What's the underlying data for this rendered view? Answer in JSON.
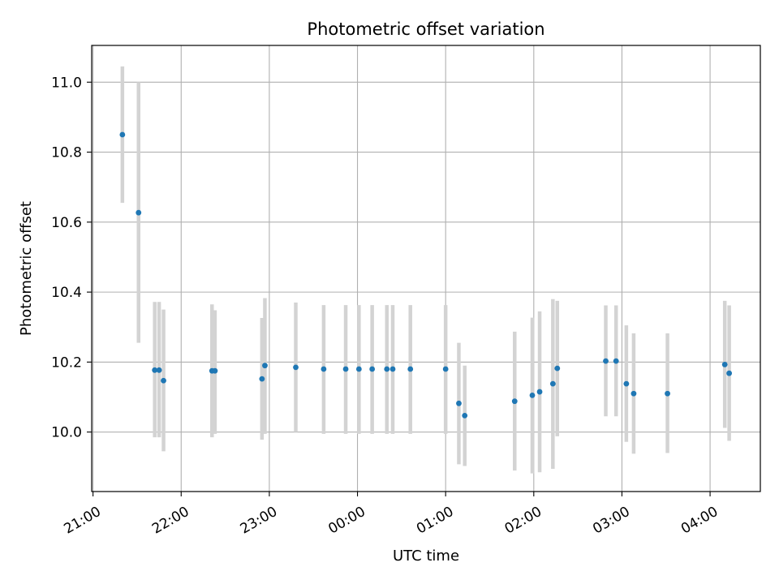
{
  "chart_data": {
    "type": "scatter",
    "title": "Photometric offset variation",
    "xlabel": "UTC time",
    "ylabel": "Photometric offset",
    "x_range_hours": [
      20.985,
      28.57
    ],
    "ylim": [
      9.83,
      11.105
    ],
    "grid": true,
    "x_ticks": [
      {
        "label": "21:00",
        "hours": 21
      },
      {
        "label": "22:00",
        "hours": 22
      },
      {
        "label": "23:00",
        "hours": 23
      },
      {
        "label": "00:00",
        "hours": 24
      },
      {
        "label": "01:00",
        "hours": 25
      },
      {
        "label": "02:00",
        "hours": 26
      },
      {
        "label": "03:00",
        "hours": 27
      },
      {
        "label": "04:00",
        "hours": 28
      }
    ],
    "y_ticks": [
      {
        "label": "10.0",
        "value": 10.0
      },
      {
        "label": "10.2",
        "value": 10.2
      },
      {
        "label": "10.4",
        "value": 10.4
      },
      {
        "label": "10.6",
        "value": 10.6
      },
      {
        "label": "10.8",
        "value": 10.8
      },
      {
        "label": "11.0",
        "value": 11.0
      }
    ],
    "series": [
      {
        "marker_color": "#1f77b4",
        "errorbar_color": "#d3d3d3",
        "points": [
          {
            "time": "21:20",
            "y": 10.85,
            "lo": 10.655,
            "hi": 11.045
          },
          {
            "time": "21:31",
            "y": 10.627,
            "lo": 10.255,
            "hi": 11.0
          },
          {
            "time": "21:42",
            "y": 10.177,
            "lo": 9.985,
            "hi": 10.372
          },
          {
            "time": "21:45",
            "y": 10.177,
            "lo": 9.985,
            "hi": 10.372
          },
          {
            "time": "21:48",
            "y": 10.147,
            "lo": 9.945,
            "hi": 10.35
          },
          {
            "time": "22:21",
            "y": 10.175,
            "lo": 9.985,
            "hi": 10.365
          },
          {
            "time": "22:23",
            "y": 10.175,
            "lo": 9.995,
            "hi": 10.348
          },
          {
            "time": "22:55",
            "y": 10.152,
            "lo": 9.978,
            "hi": 10.326
          },
          {
            "time": "22:57",
            "y": 10.19,
            "lo": 9.995,
            "hi": 10.383
          },
          {
            "time": "23:18",
            "y": 10.185,
            "lo": 10.0,
            "hi": 10.37
          },
          {
            "time": "23:37",
            "y": 10.18,
            "lo": 9.995,
            "hi": 10.363
          },
          {
            "time": "23:52",
            "y": 10.18,
            "lo": 9.995,
            "hi": 10.363
          },
          {
            "time": "00:01",
            "y": 10.18,
            "lo": 9.995,
            "hi": 10.363
          },
          {
            "time": "00:10",
            "y": 10.18,
            "lo": 9.995,
            "hi": 10.363
          },
          {
            "time": "00:20",
            "y": 10.18,
            "lo": 9.995,
            "hi": 10.363
          },
          {
            "time": "00:24",
            "y": 10.18,
            "lo": 9.995,
            "hi": 10.363
          },
          {
            "time": "00:36",
            "y": 10.18,
            "lo": 9.995,
            "hi": 10.363
          },
          {
            "time": "01:00",
            "y": 10.18,
            "lo": 9.995,
            "hi": 10.363
          },
          {
            "time": "01:09",
            "y": 10.082,
            "lo": 9.908,
            "hi": 10.255
          },
          {
            "time": "01:13",
            "y": 10.047,
            "lo": 9.903,
            "hi": 10.19
          },
          {
            "time": "01:47",
            "y": 10.088,
            "lo": 9.89,
            "hi": 10.287
          },
          {
            "time": "01:59",
            "y": 10.105,
            "lo": 9.882,
            "hi": 10.327
          },
          {
            "time": "02:04",
            "y": 10.115,
            "lo": 9.885,
            "hi": 10.345
          },
          {
            "time": "02:13",
            "y": 10.138,
            "lo": 9.895,
            "hi": 10.38
          },
          {
            "time": "02:16",
            "y": 10.182,
            "lo": 9.988,
            "hi": 10.375
          },
          {
            "time": "02:49",
            "y": 10.203,
            "lo": 10.045,
            "hi": 10.362
          },
          {
            "time": "02:56",
            "y": 10.203,
            "lo": 10.045,
            "hi": 10.362
          },
          {
            "time": "03:03",
            "y": 10.138,
            "lo": 9.972,
            "hi": 10.305
          },
          {
            "time": "03:08",
            "y": 10.11,
            "lo": 9.938,
            "hi": 10.282
          },
          {
            "time": "03:31",
            "y": 10.11,
            "lo": 9.94,
            "hi": 10.282
          },
          {
            "time": "04:10",
            "y": 10.193,
            "lo": 10.012,
            "hi": 10.375
          },
          {
            "time": "04:13",
            "y": 10.168,
            "lo": 9.975,
            "hi": 10.362
          }
        ]
      }
    ]
  }
}
